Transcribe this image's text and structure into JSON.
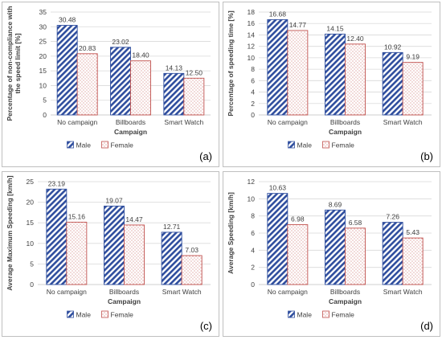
{
  "colors": {
    "male": "#2f4e9e",
    "female": "#c0504d",
    "grid": "#d9d9d9",
    "axis": "#bfbfbf"
  },
  "chart_data": [
    {
      "type": "bar",
      "panel_label": "(a)",
      "categories": [
        "No campaign",
        "Billboards",
        "Smart Watch"
      ],
      "series": [
        {
          "name": "Male",
          "values": [
            30.48,
            23.02,
            14.13
          ],
          "labels": [
            "30.48",
            "23.02",
            "14.13"
          ]
        },
        {
          "name": "Female",
          "values": [
            20.83,
            18.4,
            12.5
          ],
          "labels": [
            "20.83",
            "18.40",
            "12.50"
          ]
        }
      ],
      "xlabel": "Campaign",
      "ylabel": "Percentage of non-compliance with the speed limit [%]",
      "ylabel_lines": [
        "Percentage of non-compliance with",
        "the speed limit [%]"
      ],
      "ylim": [
        0,
        35
      ],
      "yticks": [
        "0",
        "5",
        "10",
        "15",
        "20",
        "25",
        "30",
        "35"
      ],
      "grid": true,
      "legend_position": "bottom"
    },
    {
      "type": "bar",
      "panel_label": "(b)",
      "categories": [
        "No campaign",
        "Billboards",
        "Smart Watch"
      ],
      "series": [
        {
          "name": "Male",
          "values": [
            16.68,
            14.15,
            10.92
          ],
          "labels": [
            "16.68",
            "14.15",
            "10.92"
          ]
        },
        {
          "name": "Female",
          "values": [
            14.77,
            12.4,
            9.19
          ],
          "labels": [
            "14.77",
            "12.40",
            "9.19"
          ]
        }
      ],
      "xlabel": "Campaign",
      "ylabel": "Percentage of speeding time [%]",
      "ylabel_lines": [
        "Percentage of speeding time [%]"
      ],
      "ylim": [
        0,
        18
      ],
      "yticks": [
        "0",
        "2",
        "4",
        "6",
        "8",
        "10",
        "12",
        "14",
        "16",
        "18"
      ],
      "grid": true,
      "legend_position": "bottom"
    },
    {
      "type": "bar",
      "panel_label": "(c)",
      "categories": [
        "No campaign",
        "Billboards",
        "Smart Watch"
      ],
      "series": [
        {
          "name": "Male",
          "values": [
            23.19,
            19.07,
            12.71
          ],
          "labels": [
            "23.19",
            "19.07",
            "12.71"
          ]
        },
        {
          "name": "Female",
          "values": [
            15.16,
            14.47,
            7.03
          ],
          "labels": [
            "15.16",
            "14.47",
            "7.03"
          ]
        }
      ],
      "xlabel": "Campaign",
      "ylabel": "Average Maximum Speeding  [km/h]",
      "ylabel_lines": [
        "Average Maximum Speeding  [km/h]"
      ],
      "ylim": [
        0,
        25
      ],
      "yticks": [
        "0",
        "5",
        "10",
        "15",
        "20",
        "25"
      ],
      "grid": true,
      "legend_position": "bottom"
    },
    {
      "type": "bar",
      "panel_label": "(d)",
      "categories": [
        "No campaign",
        "Billboards",
        "Smart Watch"
      ],
      "series": [
        {
          "name": "Male",
          "values": [
            10.63,
            8.69,
            7.26
          ],
          "labels": [
            "10.63",
            "8.69",
            "7.26"
          ]
        },
        {
          "name": "Female",
          "values": [
            6.98,
            6.58,
            5.43
          ],
          "labels": [
            "6.98",
            "6.58",
            "5.43"
          ]
        }
      ],
      "xlabel": "Campaign",
      "ylabel": "Average  Speeding  [km/h]",
      "ylabel_lines": [
        "Average  Speeding  [km/h]"
      ],
      "ylim": [
        0,
        12
      ],
      "yticks": [
        "0",
        "2",
        "4",
        "6",
        "8",
        "10",
        "12"
      ],
      "grid": true,
      "legend_position": "bottom"
    }
  ]
}
